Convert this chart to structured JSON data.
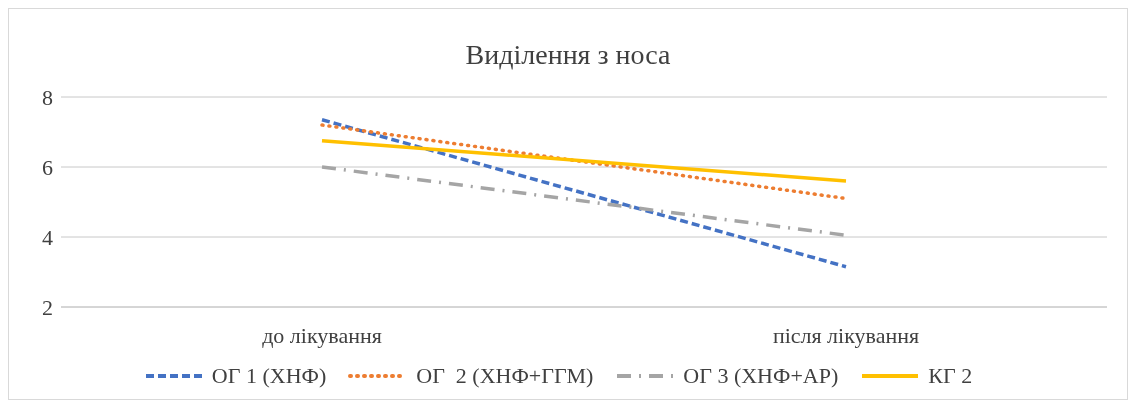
{
  "chart_data": {
    "type": "line",
    "title": "Виділення з носа",
    "categories": [
      "до лікування",
      "після лікування"
    ],
    "series": [
      {
        "name": "ОГ 1 (ХНФ)",
        "color": "#4472c4",
        "line_style": "dashed",
        "values": [
          7.35,
          3.15
        ]
      },
      {
        "name": "ОГ  2 (ХНФ+ГГМ)",
        "color": "#ed7d31",
        "line_style": "dotted",
        "values": [
          7.2,
          5.1
        ]
      },
      {
        "name": "ОГ 3 (ХНФ+АР)",
        "color": "#a5a5a5",
        "line_style": "dashdot",
        "values": [
          6.0,
          4.05
        ]
      },
      {
        "name": "КГ 2",
        "color": "#ffc000",
        "line_style": "solid",
        "values": [
          6.75,
          5.6
        ]
      }
    ],
    "ylim": [
      2,
      8
    ],
    "yticks": [
      2,
      4,
      6,
      8
    ],
    "grid": "y",
    "legend": "bottom",
    "marker": "none"
  }
}
